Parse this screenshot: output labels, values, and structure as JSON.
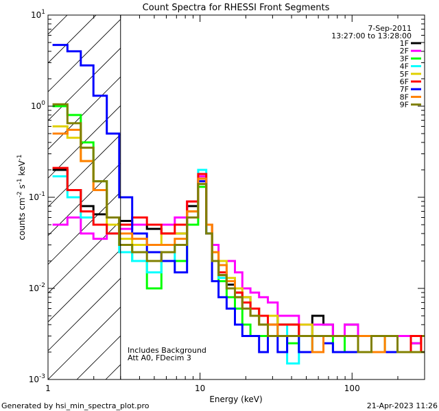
{
  "chart_data": {
    "type": "line",
    "title": "Count Spectra for RHESSI Front Segments",
    "date": "7-Sep-2011",
    "time_range": "13:27:00 to 13:28:00",
    "xlabel": "Energy (keV)",
    "ylabel_parts": [
      "counts cm",
      "-2",
      " s",
      "-1",
      " keV",
      "-1"
    ],
    "x_scale": "log",
    "y_scale": "log",
    "xlim": [
      1,
      300
    ],
    "ylim": [
      0.001,
      10
    ],
    "x_tick_labels": [
      {
        "value": 1,
        "label": "1"
      },
      {
        "value": 10,
        "label": "10"
      },
      {
        "value": 100,
        "label": "100"
      }
    ],
    "y_tick_labels": [
      {
        "value": 0.001,
        "base": "10",
        "exp": "-3"
      },
      {
        "value": 0.01,
        "base": "10",
        "exp": "-2"
      },
      {
        "value": 0.1,
        "base": "10",
        "exp": "-1"
      },
      {
        "value": 1,
        "base": "10",
        "exp": "0"
      },
      {
        "value": 10,
        "base": "10",
        "exp": "1"
      }
    ],
    "excluded_region_keV": [
      1,
      3
    ],
    "annotations": [
      "Includes Background",
      "Att A0, FDecim 3"
    ],
    "legend_position": "top-right",
    "series": [
      {
        "name": "1F",
        "color": "#000000",
        "x": [
          1.2,
          1.5,
          1.8,
          2.2,
          2.7,
          3.2,
          4,
          5,
          6.2,
          7.5,
          9,
          10.5,
          11.5,
          12.5,
          14,
          16,
          18,
          20,
          23,
          26,
          30,
          35,
          40,
          50,
          60,
          70,
          80,
          100,
          120,
          150,
          180,
          220,
          270,
          300
        ],
        "y": [
          0.2,
          0.12,
          0.08,
          0.065,
          0.06,
          0.055,
          0.05,
          0.045,
          0.04,
          0.04,
          0.08,
          0.16,
          0.05,
          0.02,
          0.014,
          0.011,
          0.009,
          0.008,
          0.006,
          0.005,
          0.005,
          0.004,
          0.004,
          0.003,
          0.005,
          0.004,
          0.003,
          0.004,
          0.003,
          0.003,
          0.003,
          0.003,
          0.0025,
          0.003
        ]
      },
      {
        "name": "2F",
        "color": "#ff00ff",
        "x": [
          1.2,
          1.5,
          1.8,
          2.2,
          2.7,
          3.2,
          4,
          5,
          6.2,
          7.5,
          9,
          10.5,
          11.5,
          12.5,
          14,
          16,
          18,
          20,
          23,
          26,
          30,
          35,
          40,
          50,
          60,
          70,
          80,
          100,
          120,
          150,
          180,
          220,
          270,
          300
        ],
        "y": [
          0.05,
          0.06,
          0.04,
          0.035,
          0.04,
          0.045,
          0.05,
          0.05,
          0.05,
          0.06,
          0.09,
          0.17,
          0.05,
          0.03,
          0.02,
          0.02,
          0.015,
          0.01,
          0.009,
          0.008,
          0.007,
          0.005,
          0.005,
          0.004,
          0.004,
          0.004,
          0.003,
          0.004,
          0.003,
          0.003,
          0.003,
          0.003,
          0.0025,
          0.003
        ]
      },
      {
        "name": "3F",
        "color": "#00ff00",
        "x": [
          1.2,
          1.5,
          1.8,
          2.2,
          2.7,
          3.2,
          4,
          5,
          6.2,
          7.5,
          9,
          10.5,
          11.5,
          12.5,
          14,
          16,
          18,
          20,
          23,
          26,
          30,
          35,
          40,
          50,
          60,
          70,
          80,
          100,
          120,
          150,
          180,
          220,
          270,
          300
        ],
        "y": [
          1.0,
          0.8,
          0.4,
          0.15,
          0.06,
          0.03,
          0.02,
          0.01,
          0.02,
          0.02,
          0.05,
          0.13,
          0.04,
          0.02,
          0.012,
          0.008,
          0.006,
          0.004,
          0.003,
          0.003,
          0.004,
          0.003,
          0.0025,
          0.002,
          0.003,
          0.003,
          0.002,
          0.003,
          0.003,
          0.002,
          0.003,
          0.002,
          0.002,
          0.002
        ]
      },
      {
        "name": "4F",
        "color": "#00ffff",
        "x": [
          1.2,
          1.5,
          1.8,
          2.2,
          2.7,
          3.2,
          4,
          5,
          6.2,
          7.5,
          9,
          10.5,
          11.5,
          12.5,
          14,
          16,
          18,
          20,
          23,
          26,
          30,
          35,
          40,
          50,
          60,
          70,
          80,
          100,
          120,
          150,
          180,
          220,
          270,
          300
        ],
        "y": [
          0.17,
          0.1,
          0.06,
          0.05,
          0.04,
          0.025,
          0.02,
          0.015,
          0.02,
          0.03,
          0.07,
          0.2,
          0.04,
          0.02,
          0.013,
          0.01,
          0.008,
          0.006,
          0.005,
          0.004,
          0.003,
          0.004,
          0.0015,
          0.003,
          0.002,
          0.003,
          0.003,
          0.003,
          0.003,
          0.002,
          0.002,
          0.002,
          0.002,
          0.002
        ]
      },
      {
        "name": "5F",
        "color": "#e0d000",
        "x": [
          1.2,
          1.5,
          1.8,
          2.2,
          2.7,
          3.2,
          4,
          5,
          6.2,
          7.5,
          9,
          10.5,
          11.5,
          12.5,
          14,
          16,
          18,
          20,
          23,
          26,
          30,
          35,
          40,
          50,
          60,
          70,
          80,
          100,
          120,
          150,
          180,
          220,
          270,
          300
        ],
        "y": [
          0.6,
          0.45,
          0.25,
          0.12,
          0.05,
          0.035,
          0.03,
          0.03,
          0.04,
          0.04,
          0.07,
          0.15,
          0.05,
          0.025,
          0.02,
          0.013,
          0.01,
          0.008,
          0.006,
          0.005,
          0.005,
          0.004,
          0.004,
          0.004,
          0.003,
          0.003,
          0.003,
          0.003,
          0.003,
          0.003,
          0.003,
          0.002,
          0.002,
          0.003
        ]
      },
      {
        "name": "6F",
        "color": "#ff0000",
        "x": [
          1.2,
          1.5,
          1.8,
          2.2,
          2.7,
          3.2,
          4,
          5,
          6.2,
          7.5,
          9,
          10.5,
          11.5,
          12.5,
          14,
          16,
          18,
          20,
          23,
          26,
          30,
          35,
          40,
          50,
          60,
          70,
          80,
          100,
          120,
          150,
          180,
          220,
          270,
          300
        ],
        "y": [
          0.21,
          0.12,
          0.07,
          0.05,
          0.04,
          0.05,
          0.06,
          0.05,
          0.04,
          0.05,
          0.09,
          0.18,
          0.05,
          0.02,
          0.015,
          0.012,
          0.009,
          0.007,
          0.006,
          0.005,
          0.004,
          0.004,
          0.004,
          0.003,
          0.003,
          0.003,
          0.003,
          0.003,
          0.003,
          0.003,
          0.003,
          0.002,
          0.003,
          0.002
        ]
      },
      {
        "name": "7F",
        "color": "#0000ff",
        "x": [
          1.2,
          1.5,
          1.8,
          2.2,
          2.7,
          3.2,
          4,
          5,
          6.2,
          7.5,
          9,
          10.5,
          11.5,
          12.5,
          14,
          16,
          18,
          20,
          23,
          26,
          30,
          35,
          40,
          50,
          60,
          70,
          80,
          100,
          120,
          150,
          180,
          220,
          270,
          300
        ],
        "y": [
          4.7,
          4.0,
          2.8,
          1.3,
          0.5,
          0.1,
          0.04,
          0.025,
          0.02,
          0.015,
          0.06,
          0.15,
          0.04,
          0.012,
          0.008,
          0.006,
          0.004,
          0.003,
          0.003,
          0.002,
          0.003,
          0.002,
          0.003,
          0.002,
          0.002,
          0.0025,
          0.002,
          0.002,
          0.002,
          0.002,
          0.002,
          0.002,
          0.002,
          0.002
        ]
      },
      {
        "name": "8F",
        "color": "#ff8000",
        "x": [
          1.2,
          1.5,
          1.8,
          2.2,
          2.7,
          3.2,
          4,
          5,
          6.2,
          7.5,
          9,
          10.5,
          11.5,
          12.5,
          14,
          16,
          18,
          20,
          23,
          26,
          30,
          35,
          40,
          50,
          60,
          70,
          80,
          100,
          120,
          150,
          180,
          220,
          270,
          300
        ],
        "y": [
          0.5,
          0.55,
          0.25,
          0.12,
          0.06,
          0.04,
          0.035,
          0.03,
          0.03,
          0.035,
          0.07,
          0.16,
          0.05,
          0.025,
          0.018,
          0.012,
          0.008,
          0.006,
          0.005,
          0.004,
          0.004,
          0.003,
          0.003,
          0.003,
          0.002,
          0.003,
          0.003,
          0.003,
          0.003,
          0.002,
          0.003,
          0.002,
          0.002,
          0.002
        ]
      },
      {
        "name": "9F",
        "color": "#808000",
        "x": [
          1.2,
          1.5,
          1.8,
          2.2,
          2.7,
          3.2,
          4,
          5,
          6.2,
          7.5,
          9,
          10.5,
          11.5,
          12.5,
          14,
          16,
          18,
          20,
          23,
          26,
          30,
          35,
          40,
          50,
          60,
          70,
          80,
          100,
          120,
          150,
          180,
          220,
          270,
          300
        ],
        "y": [
          1.05,
          0.65,
          0.35,
          0.15,
          0.06,
          0.03,
          0.025,
          0.02,
          0.025,
          0.03,
          0.06,
          0.14,
          0.04,
          0.02,
          0.014,
          0.01,
          0.008,
          0.006,
          0.005,
          0.004,
          0.003,
          0.003,
          0.003,
          0.003,
          0.003,
          0.003,
          0.003,
          0.003,
          0.002,
          0.003,
          0.003,
          0.002,
          0.002,
          0.002
        ]
      }
    ]
  },
  "footer": {
    "generated_by": "Generated by hsi_min_spectra_plot.pro",
    "datetime": "21-Apr-2023 11:26"
  }
}
